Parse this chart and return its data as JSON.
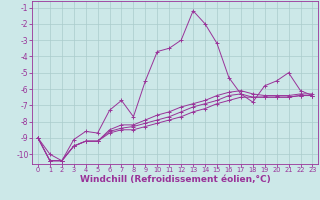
{
  "background_color": "#cce8e8",
  "grid_color": "#aacccc",
  "line_color": "#993399",
  "marker": "+",
  "xlabel": "Windchill (Refroidissement éolien,°C)",
  "xlabel_fontsize": 6.5,
  "xtick_fontsize": 4.8,
  "ytick_fontsize": 5.5,
  "xlim": [
    -0.5,
    23.5
  ],
  "ylim": [
    -10.6,
    -0.6
  ],
  "yticks": [
    -10,
    -9,
    -8,
    -7,
    -6,
    -5,
    -4,
    -3,
    -2,
    -1
  ],
  "xticks": [
    0,
    1,
    2,
    3,
    4,
    5,
    6,
    7,
    8,
    9,
    10,
    11,
    12,
    13,
    14,
    15,
    16,
    17,
    18,
    19,
    20,
    21,
    22,
    23
  ],
  "lines": [
    [
      0,
      -9.0,
      1,
      -10.0,
      2,
      -10.4,
      3,
      -9.1,
      4,
      -8.6,
      5,
      -8.7,
      6,
      -7.3,
      7,
      -6.7,
      8,
      -7.7,
      9,
      -5.5,
      10,
      -3.7,
      11,
      -3.5,
      12,
      -3.0,
      13,
      -1.2,
      14,
      -2.0,
      15,
      -3.2,
      16,
      -5.3,
      17,
      -6.3,
      18,
      -6.8,
      19,
      -5.8,
      20,
      -5.5,
      21,
      -5.0,
      22,
      -6.1,
      23,
      -6.4
    ],
    [
      0,
      -9.0,
      1,
      -10.4,
      2,
      -10.4,
      3,
      -9.5,
      4,
      -9.2,
      5,
      -9.2,
      6,
      -8.5,
      7,
      -8.2,
      8,
      -8.2,
      9,
      -7.9,
      10,
      -7.6,
      11,
      -7.4,
      12,
      -7.1,
      13,
      -6.9,
      14,
      -6.7,
      15,
      -6.4,
      16,
      -6.2,
      17,
      -6.1,
      18,
      -6.3,
      19,
      -6.4,
      20,
      -6.4,
      21,
      -6.4,
      22,
      -6.3,
      23,
      -6.3
    ],
    [
      0,
      -9.0,
      1,
      -10.4,
      2,
      -10.4,
      3,
      -9.5,
      4,
      -9.2,
      5,
      -9.2,
      6,
      -8.6,
      7,
      -8.4,
      8,
      -8.3,
      9,
      -8.1,
      10,
      -7.9,
      11,
      -7.7,
      12,
      -7.4,
      13,
      -7.1,
      14,
      -6.9,
      15,
      -6.7,
      16,
      -6.4,
      17,
      -6.3,
      18,
      -6.5,
      19,
      -6.5,
      20,
      -6.5,
      21,
      -6.5,
      22,
      -6.4,
      23,
      -6.4
    ],
    [
      0,
      -9.0,
      1,
      -10.4,
      2,
      -10.4,
      3,
      -9.5,
      4,
      -9.2,
      5,
      -9.2,
      6,
      -8.7,
      7,
      -8.5,
      8,
      -8.5,
      9,
      -8.3,
      10,
      -8.1,
      11,
      -7.9,
      12,
      -7.7,
      13,
      -7.4,
      14,
      -7.2,
      15,
      -6.9,
      16,
      -6.7,
      17,
      -6.5,
      18,
      -6.5,
      19,
      -6.5,
      20,
      -6.5,
      21,
      -6.5,
      22,
      -6.4,
      23,
      -6.4
    ]
  ]
}
